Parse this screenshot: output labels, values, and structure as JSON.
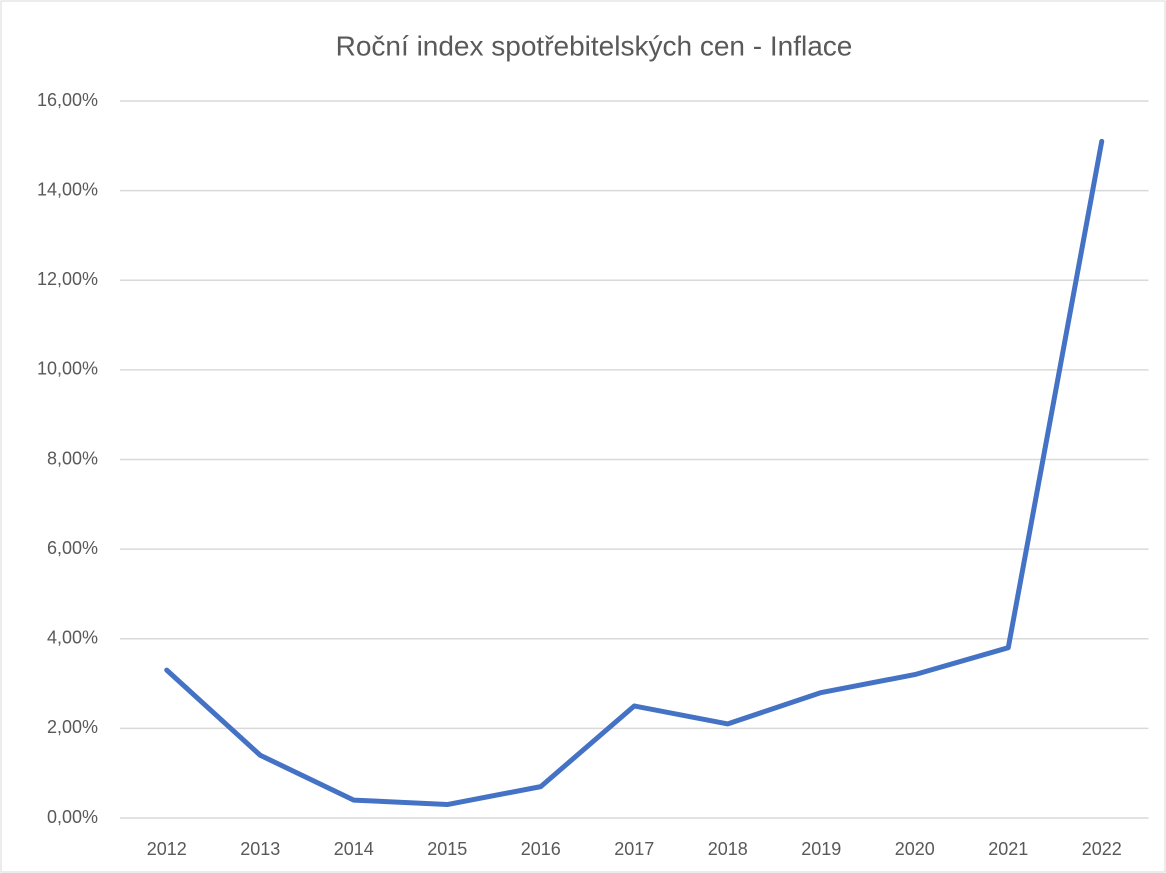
{
  "chart_data": {
    "type": "line",
    "title": "Roční index spotřebitelských cen - Inflace",
    "categories": [
      "2012",
      "2013",
      "2014",
      "2015",
      "2016",
      "2017",
      "2018",
      "2019",
      "2020",
      "2021",
      "2022"
    ],
    "series": [
      {
        "name": "Inflace",
        "color": "#4472c4",
        "values": [
          3.3,
          1.4,
          0.4,
          0.3,
          0.7,
          2.5,
          2.1,
          2.8,
          3.2,
          3.8,
          15.1
        ]
      }
    ],
    "ylim": [
      0,
      16
    ],
    "yticks": [
      {
        "value": 0,
        "label": "0,00%"
      },
      {
        "value": 2,
        "label": "2,00%"
      },
      {
        "value": 4,
        "label": "4,00%"
      },
      {
        "value": 6,
        "label": "6,00%"
      },
      {
        "value": 8,
        "label": "8,00%"
      },
      {
        "value": 10,
        "label": "10,00%"
      },
      {
        "value": 12,
        "label": "12,00%"
      },
      {
        "value": 14,
        "label": "14,00%"
      },
      {
        "value": 16,
        "label": "16,00%"
      }
    ],
    "grid": true
  }
}
